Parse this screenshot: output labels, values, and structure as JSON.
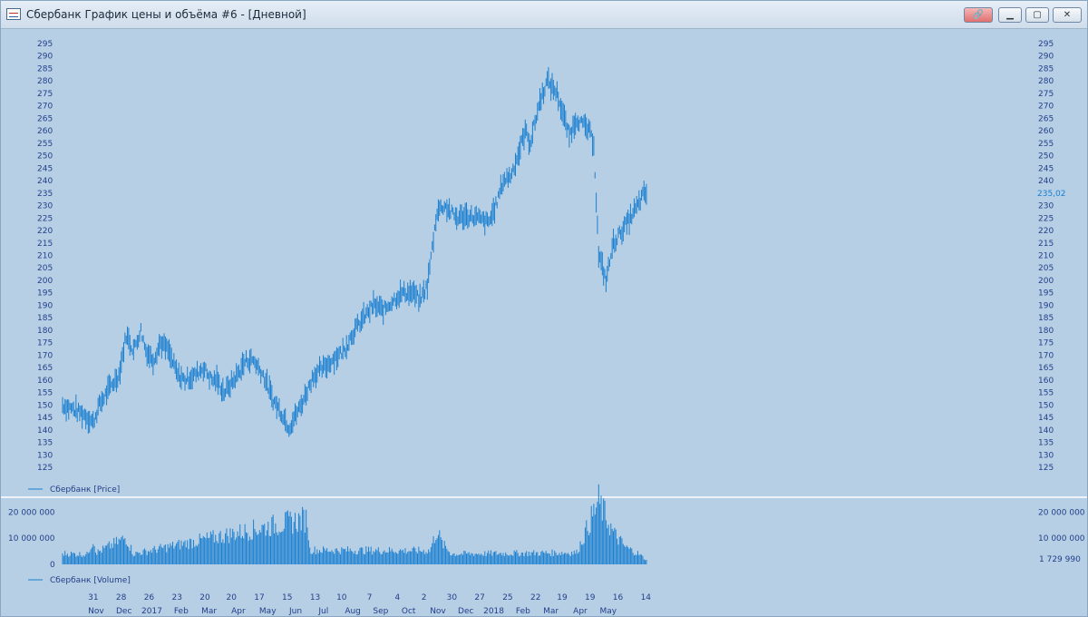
{
  "window": {
    "title": "Сбербанк График цены и объёма #6 - [Дневной]",
    "buttons": {
      "link": "🔗",
      "minimize": "▁",
      "maximize": "▢",
      "close": "✕"
    }
  },
  "colors": {
    "background": "#b6cfe4",
    "series": "#1a7fd0",
    "axis_text": "#24408a",
    "last_price": "#1a7fd0"
  },
  "chart_data": [
    {
      "type": "ohlc",
      "legend": "Сбербанк [Price]",
      "last_value_label": "235,02",
      "ylim": [
        125,
        295
      ],
      "yticks": [
        295,
        290,
        285,
        280,
        275,
        270,
        265,
        260,
        255,
        250,
        245,
        240,
        235,
        230,
        225,
        220,
        215,
        210,
        205,
        200,
        195,
        190,
        185,
        180,
        175,
        170,
        165,
        160,
        155,
        150,
        145,
        140,
        135,
        130,
        125
      ],
      "anchors": [
        [
          0,
          150
        ],
        [
          10,
          148
        ],
        [
          18,
          146
        ],
        [
          25,
          143
        ],
        [
          30,
          150
        ],
        [
          40,
          158
        ],
        [
          46,
          162
        ],
        [
          52,
          178
        ],
        [
          58,
          172
        ],
        [
          64,
          180
        ],
        [
          68,
          172
        ],
        [
          74,
          168
        ],
        [
          80,
          175
        ],
        [
          86,
          172
        ],
        [
          94,
          162
        ],
        [
          100,
          160
        ],
        [
          108,
          162
        ],
        [
          115,
          165
        ],
        [
          122,
          160
        ],
        [
          126,
          160
        ],
        [
          132,
          155
        ],
        [
          140,
          160
        ],
        [
          150,
          168
        ],
        [
          156,
          168
        ],
        [
          164,
          162
        ],
        [
          172,
          152
        ],
        [
          180,
          146
        ],
        [
          185,
          141
        ],
        [
          195,
          150
        ],
        [
          205,
          162
        ],
        [
          214,
          165
        ],
        [
          220,
          168
        ],
        [
          230,
          172
        ],
        [
          236,
          178
        ],
        [
          246,
          185
        ],
        [
          254,
          190
        ],
        [
          262,
          188
        ],
        [
          272,
          193
        ],
        [
          278,
          195
        ],
        [
          286,
          195
        ],
        [
          292,
          192
        ],
        [
          298,
          198
        ],
        [
          306,
          228
        ],
        [
          312,
          230
        ],
        [
          322,
          225
        ],
        [
          330,
          226
        ],
        [
          338,
          225
        ],
        [
          348,
          223
        ],
        [
          354,
          230
        ],
        [
          360,
          240
        ],
        [
          366,
          242
        ],
        [
          372,
          250
        ],
        [
          378,
          260
        ],
        [
          382,
          255
        ],
        [
          390,
          272
        ],
        [
          396,
          280
        ],
        [
          404,
          275
        ],
        [
          408,
          268
        ],
        [
          414,
          258
        ],
        [
          420,
          265
        ],
        [
          430,
          260
        ],
        [
          434,
          255
        ],
        [
          438,
          210
        ],
        [
          444,
          200
        ],
        [
          450,
          215
        ],
        [
          460,
          222
        ],
        [
          470,
          230
        ],
        [
          474,
          234
        ],
        [
          477,
          235.02
        ]
      ]
    },
    {
      "type": "bar",
      "legend": "Сбербанк [Volume]",
      "last_value_label": "1 729 990",
      "ylim": [
        0,
        25000000
      ],
      "yticks_labels": [
        "20 000 000",
        "10 000 000",
        "0"
      ],
      "yticks": [
        20000000,
        10000000,
        0
      ],
      "volume_anchors": [
        [
          0,
          4200000
        ],
        [
          20,
          3800000
        ],
        [
          25,
          9500000
        ],
        [
          28,
          4500000
        ],
        [
          52,
          10200000
        ],
        [
          58,
          4000000
        ],
        [
          200,
          17500000
        ],
        [
          202,
          5500000
        ],
        [
          300,
          5200000
        ],
        [
          306,
          13000000
        ],
        [
          310,
          8000000
        ],
        [
          318,
          4000000
        ],
        [
          420,
          4500000
        ],
        [
          438,
          24000000
        ],
        [
          444,
          18000000
        ],
        [
          450,
          12000000
        ],
        [
          460,
          6500000
        ],
        [
          470,
          4200000
        ],
        [
          477,
          1729990
        ]
      ]
    }
  ],
  "x_axis": {
    "day_labels": [
      {
        "t": "31",
        "i": 22
      },
      {
        "t": "28",
        "i": 42
      },
      {
        "t": "26",
        "i": 62
      },
      {
        "t": "23",
        "i": 82
      },
      {
        "t": "20",
        "i": 102
      },
      {
        "t": "20",
        "i": 121
      },
      {
        "t": "17",
        "i": 141
      },
      {
        "t": "15",
        "i": 161
      },
      {
        "t": "13",
        "i": 181
      },
      {
        "t": "10",
        "i": 200
      },
      {
        "t": "7",
        "i": 220
      },
      {
        "t": "4",
        "i": 240
      },
      {
        "t": "2",
        "i": 259
      },
      {
        "t": "30",
        "i": 279
      },
      {
        "t": "27",
        "i": 299
      },
      {
        "t": "25",
        "i": 319
      },
      {
        "t": "22",
        "i": 339
      },
      {
        "t": "19",
        "i": 358
      },
      {
        "t": "19",
        "i": 378
      },
      {
        "t": "16",
        "i": 398
      },
      {
        "t": "14",
        "i": 418
      }
    ],
    "month_labels": [
      {
        "t": "Nov",
        "i": 24
      },
      {
        "t": "Dec",
        "i": 44
      },
      {
        "t": "2017",
        "i": 64
      },
      {
        "t": "Feb",
        "i": 85
      },
      {
        "t": "Mar",
        "i": 105
      },
      {
        "t": "Apr",
        "i": 126
      },
      {
        "t": "May",
        "i": 147
      },
      {
        "t": "Jun",
        "i": 167
      },
      {
        "t": "Jul",
        "i": 187
      },
      {
        "t": "Aug",
        "i": 208
      },
      {
        "t": "Sep",
        "i": 228
      },
      {
        "t": "Oct",
        "i": 248
      },
      {
        "t": "Nov",
        "i": 269
      },
      {
        "t": "Dec",
        "i": 289
      },
      {
        "t": "2018",
        "i": 309
      },
      {
        "t": "Feb",
        "i": 330
      },
      {
        "t": "Mar",
        "i": 350
      },
      {
        "t": "Apr",
        "i": 371
      },
      {
        "t": "May",
        "i": 391
      }
    ]
  }
}
